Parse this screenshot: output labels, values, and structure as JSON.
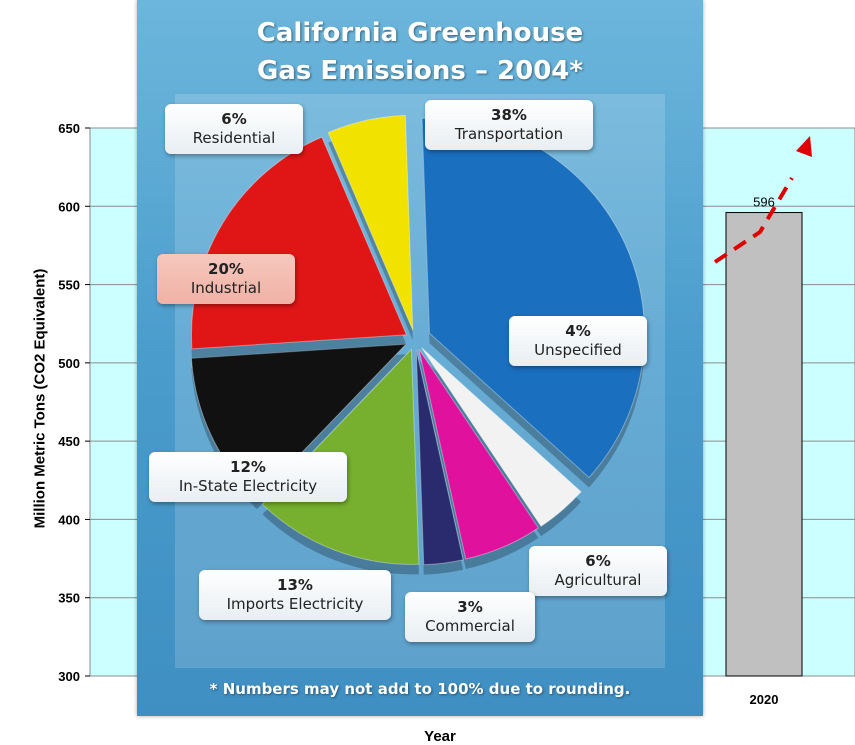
{
  "chart_data": [
    {
      "type": "bar",
      "title": "",
      "xlabel": "Year",
      "ylabel": "Million Metric Tons (CO2 Equivalent)",
      "ylim": [
        300,
        650
      ],
      "yticks": [
        300,
        350,
        400,
        450,
        500,
        550,
        600,
        650
      ],
      "grid": true,
      "categories": [
        "2020"
      ],
      "values": [
        596
      ],
      "data_labels": [
        "596"
      ],
      "bar_color": "#c0c0c0",
      "plot_background": "#ccffff",
      "trend_line_color": "#e00000"
    },
    {
      "type": "pie",
      "title": "California Greenhouse Gas Emissions – 2004*",
      "title_lines": [
        "California Greenhouse",
        "Gas Emissions – 2004*"
      ],
      "footnote": "* Numbers may not add to 100% due to rounding.",
      "slices": [
        {
          "label": "Transportation",
          "pct_label": "38%",
          "value": 38,
          "color": "#1a6fbf"
        },
        {
          "label": "Unspecified",
          "pct_label": "4%",
          "value": 4,
          "color": "#f2f2f2"
        },
        {
          "label": "Agricultural",
          "pct_label": "6%",
          "value": 6,
          "color": "#e0119c"
        },
        {
          "label": "Commercial",
          "pct_label": "3%",
          "value": 3,
          "color": "#2a2a6e"
        },
        {
          "label": "Imports Electricity",
          "pct_label": "13%",
          "value": 13,
          "color": "#77b02e"
        },
        {
          "label": "In-State Electricity",
          "pct_label": "12%",
          "value": 12,
          "color": "#111111"
        },
        {
          "label": "Industrial",
          "pct_label": "20%",
          "value": 20,
          "color": "#e01616"
        },
        {
          "label": "Residential",
          "pct_label": "6%",
          "value": 6,
          "color": "#f2e200"
        }
      ]
    }
  ]
}
